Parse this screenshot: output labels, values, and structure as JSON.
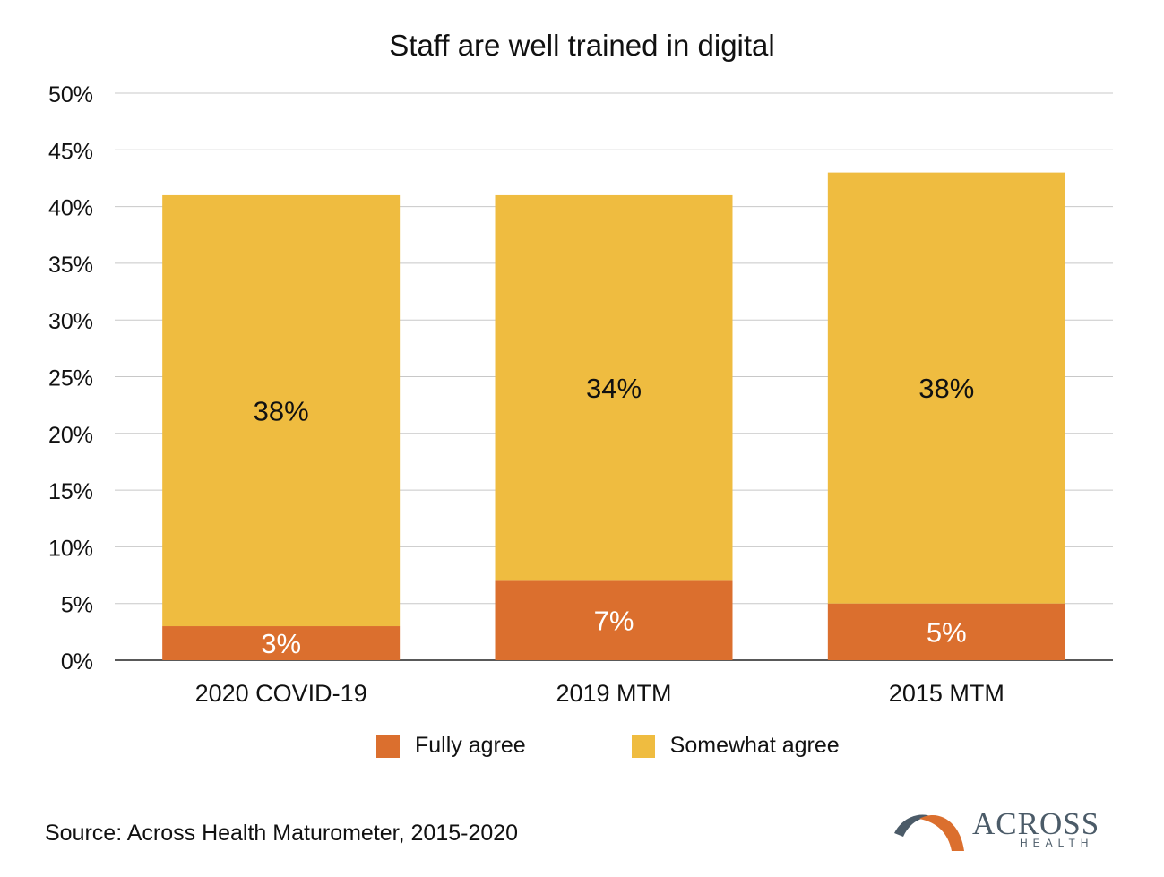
{
  "chart_data": {
    "type": "bar",
    "stacked": true,
    "title": "Staff are well trained in digital",
    "categories": [
      "2020 COVID-19",
      "2019 MTM",
      "2015 MTM"
    ],
    "series": [
      {
        "name": "Fully agree",
        "values": [
          3,
          7,
          5
        ],
        "labels": [
          "3%",
          "7%",
          "5%"
        ],
        "color": "#db6f2e",
        "label_color": "#ffffff"
      },
      {
        "name": "Somewhat agree",
        "values": [
          38,
          34,
          38
        ],
        "labels": [
          "38%",
          "34%",
          "38%"
        ],
        "color": "#efbc40",
        "label_color": "#111111"
      }
    ],
    "ylim": [
      0,
      50
    ],
    "yticks": [
      0,
      5,
      10,
      15,
      20,
      25,
      30,
      35,
      40,
      45,
      50
    ],
    "ytick_labels": [
      "0%",
      "5%",
      "10%",
      "15%",
      "20%",
      "25%",
      "30%",
      "35%",
      "40%",
      "45%",
      "50%"
    ],
    "grid": true,
    "legend_position": "bottom",
    "xlabel": "",
    "ylabel": ""
  },
  "footer": {
    "source": "Source: Across Health Maturometer, 2015-2020",
    "logo_text": "ACROSS",
    "logo_subtext": "HEALTH"
  }
}
